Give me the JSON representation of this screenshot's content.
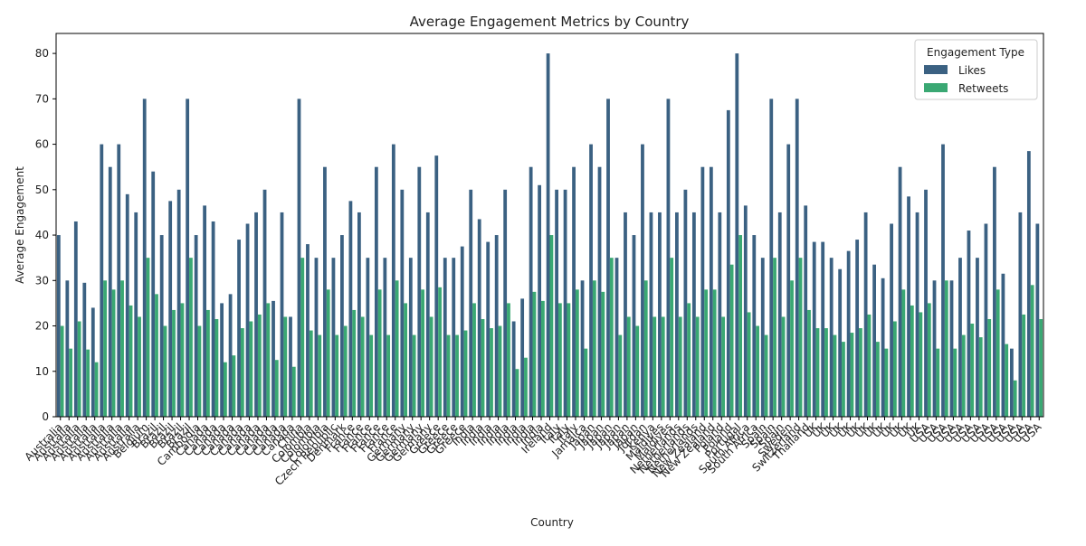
{
  "chart_data": {
    "type": "bar",
    "title": "Average Engagement Metrics by Country",
    "x_label": "Country",
    "y_label": "Average Engagement",
    "legend_title": "Engagement Type",
    "legend_position": "upper right",
    "categories": [
      "Australia",
      "Australia",
      "Australia",
      "Australia",
      "Australia",
      "Australia",
      "Australia",
      "Australia",
      "Australia",
      "Australia",
      "Belgium",
      "Brazil",
      "Brazil",
      "Brazil",
      "Brazil",
      "Brazil",
      "Cambodia",
      "Canada",
      "Canada",
      "Canada",
      "Canada",
      "Canada",
      "Canada",
      "Canada",
      "Canada",
      "Canada",
      "Canada",
      "Canada",
      "China",
      "Colombia",
      "Colombia",
      "Colombia",
      "Czech Republic",
      "Denmark",
      "France",
      "France",
      "France",
      "France",
      "France",
      "France",
      "Germany",
      "Germany",
      "Germany",
      "Germany",
      "Greece",
      "Greece",
      "Greece",
      "Greece",
      "India",
      "India",
      "India",
      "India",
      "India",
      "India",
      "India",
      "India",
      "India",
      "Ireland",
      "Italy",
      "Italy",
      "Italy",
      "Jamaica",
      "Japan",
      "Japan",
      "Japan",
      "Japan",
      "Japan",
      "Japan",
      "Jordan",
      "Kenya",
      "Maldives",
      "Maldives",
      "Netherlands",
      "Netherlands",
      "Netherlands",
      "New Zealand",
      "New Zealand",
      "Poland",
      "Poland",
      "Portugal",
      "South Africa",
      "South Africa",
      "Spain",
      "Spain",
      "Spain",
      "Sweden",
      "Switzerland",
      "Thailand",
      "UK",
      "UK",
      "UK",
      "UK",
      "UK",
      "UK",
      "UK",
      "UK",
      "UK",
      "UK",
      "UK",
      "UK",
      "UK",
      "USA",
      "USA",
      "USA",
      "USA",
      "USA",
      "USA",
      "USA",
      "USA",
      "USA",
      "USA",
      "USA",
      "USA",
      "USA",
      "USA"
    ],
    "series": [
      {
        "name": "Likes",
        "color": "#3b6182",
        "values": [
          40,
          30,
          43,
          29.5,
          24,
          60,
          55,
          60,
          49,
          45,
          70,
          54,
          40,
          47.5,
          50,
          70,
          40,
          46.5,
          43,
          25,
          27,
          39,
          42.5,
          45,
          50,
          25.5,
          45,
          22,
          70,
          38,
          35,
          55,
          35,
          40,
          47.5,
          45,
          35,
          55,
          35,
          60,
          50,
          35,
          55,
          45,
          57.5,
          35,
          35,
          37.5,
          50,
          43.5,
          38.5,
          40,
          50,
          21,
          26,
          55,
          51,
          80,
          50,
          50,
          55,
          30,
          60,
          55,
          70,
          35,
          45,
          40,
          60,
          45,
          45,
          70,
          45,
          50,
          45,
          55,
          55,
          45,
          67.5,
          80,
          46.5,
          40,
          35,
          70,
          45,
          60,
          70,
          46.5,
          38.5,
          38.5,
          35,
          32.5,
          36.5,
          39,
          45,
          33.5,
          30.5,
          42.5,
          55,
          48.5,
          45,
          50,
          30,
          60,
          30,
          35,
          41,
          35,
          42.5,
          55,
          31.5,
          15,
          45,
          58.5,
          42.5
        ]
      },
      {
        "name": "Retweets",
        "color": "#3aa873",
        "values": [
          20,
          15,
          21,
          14.8,
          12,
          30,
          28,
          30,
          24.5,
          22,
          35,
          27,
          20,
          23.5,
          25,
          35,
          20,
          23.5,
          21.5,
          12,
          13.5,
          19.5,
          21,
          22.5,
          25,
          12.5,
          22,
          11,
          35,
          19,
          18,
          28,
          18,
          20,
          23.5,
          22,
          18,
          28,
          18,
          30,
          25,
          18,
          28,
          22,
          28.5,
          18,
          18,
          19,
          25,
          21.5,
          19.5,
          20,
          25,
          10.5,
          13,
          27.5,
          25.5,
          40,
          25,
          25,
          28,
          15,
          30,
          27.5,
          35,
          18,
          22,
          20,
          30,
          22,
          22,
          35,
          22,
          25,
          22,
          28,
          28,
          22,
          33.5,
          40,
          23,
          20,
          18,
          35,
          22,
          30,
          35,
          23.5,
          19.5,
          19.5,
          18,
          16.5,
          18.5,
          19.5,
          22.5,
          16.5,
          15,
          21,
          28,
          24.5,
          23,
          25,
          15,
          30,
          15,
          18,
          20.5,
          17.5,
          21.5,
          28,
          16,
          8,
          22.5,
          29,
          21.5
        ]
      }
    ],
    "ylim": [
      0,
      84.4
    ],
    "yticks": [
      0,
      10,
      20,
      30,
      40,
      50,
      60,
      70,
      80
    ],
    "grid": false
  }
}
